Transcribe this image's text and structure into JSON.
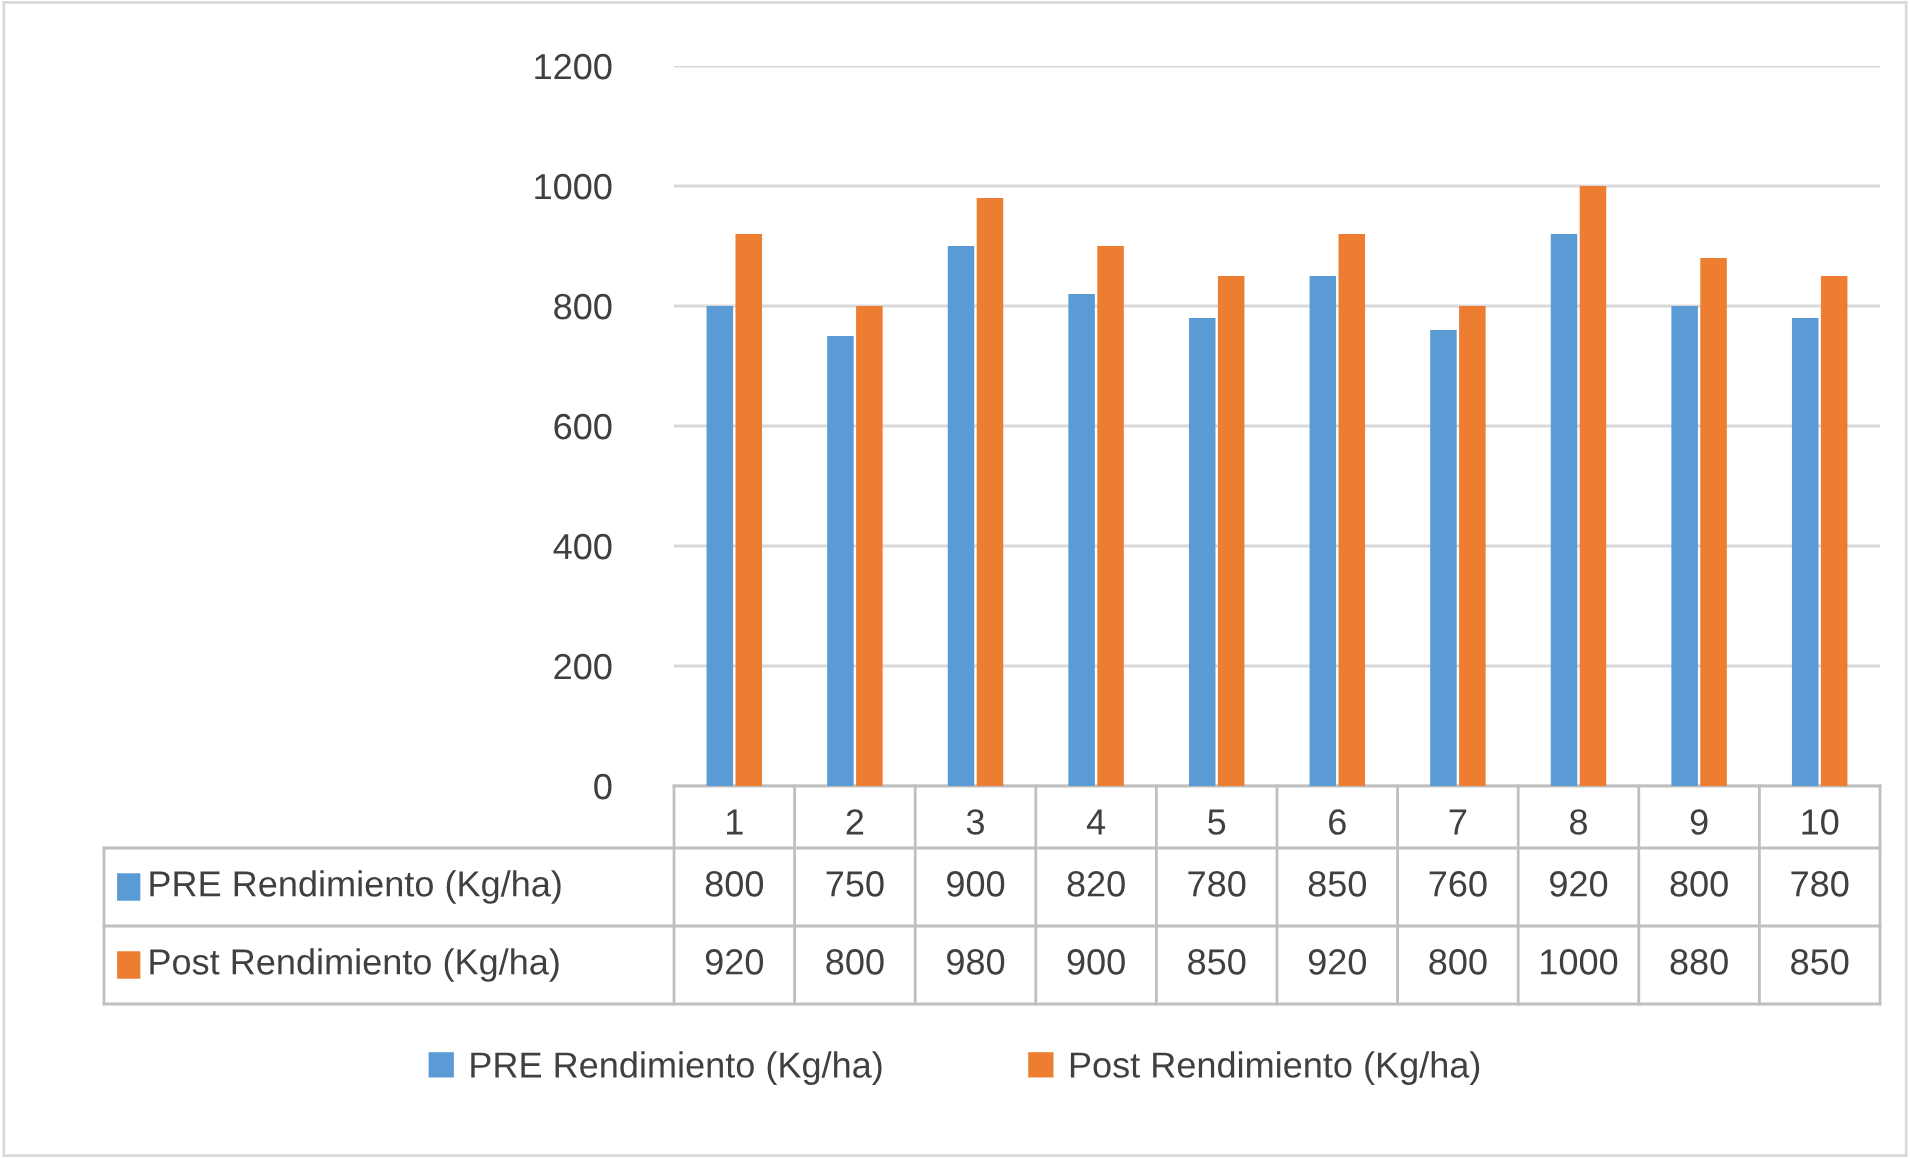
{
  "chart_data": {
    "type": "bar",
    "categories": [
      "1",
      "2",
      "3",
      "4",
      "5",
      "6",
      "7",
      "8",
      "9",
      "10"
    ],
    "series": [
      {
        "name": "PRE Rendimiento (Kg/ha)",
        "color": "#5b9bd5",
        "values": [
          800,
          750,
          900,
          820,
          780,
          850,
          760,
          920,
          800,
          780
        ]
      },
      {
        "name": "Post Rendimiento (Kg/ha)",
        "color": "#ed7d31",
        "values": [
          920,
          800,
          980,
          900,
          850,
          920,
          800,
          1000,
          880,
          850
        ]
      }
    ],
    "ylim": [
      0,
      1200
    ],
    "yticks": [
      0,
      200,
      400,
      600,
      800,
      1000,
      1200
    ],
    "grid": "y",
    "legend": "bottom",
    "data_labels": true
  }
}
